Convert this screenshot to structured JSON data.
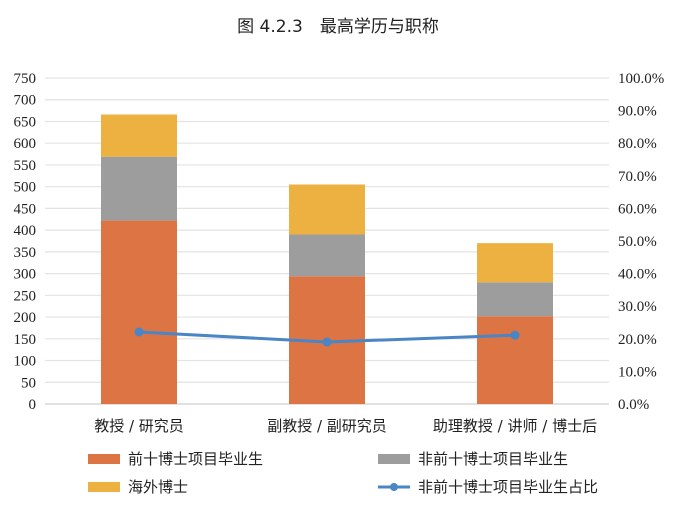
{
  "chart_data": {
    "type": "bar",
    "stacked": true,
    "title": "图 4.2.3　最高学历与职称",
    "categories": [
      "教授 / 研究员",
      "副教授 / 副研究员",
      "助理教授 / 讲师 / 博士后"
    ],
    "series": [
      {
        "name": "前十博士项目毕业生",
        "type": "bar",
        "color": "#DD7444",
        "values": [
          422,
          294,
          202
        ]
      },
      {
        "name": "非前十博士项目毕业生",
        "type": "bar",
        "color": "#9D9D9D",
        "values": [
          147,
          96,
          78
        ]
      },
      {
        "name": "海外博士",
        "type": "bar",
        "color": "#ECB140",
        "values": [
          97,
          115,
          90
        ]
      },
      {
        "name": "非前十博士项目毕业生占比",
        "type": "line",
        "axis": "right",
        "color": "#4A86C5",
        "values": [
          22.1,
          19.0,
          21.1
        ]
      }
    ],
    "y_left": {
      "ylim": [
        0,
        750
      ],
      "ticks": [
        "0",
        "50",
        "100",
        "150",
        "200",
        "250",
        "300",
        "350",
        "400",
        "450",
        "500",
        "550",
        "600",
        "650",
        "700",
        "750"
      ]
    },
    "y_right": {
      "ylim": [
        0,
        100
      ],
      "ticks": [
        "0.0%",
        "10.0%",
        "20.0%",
        "30.0%",
        "40.0%",
        "50.0%",
        "60.0%",
        "70.0%",
        "80.0%",
        "90.0%",
        "100.0%"
      ]
    },
    "grid": true,
    "legend_placement": "bottom"
  }
}
